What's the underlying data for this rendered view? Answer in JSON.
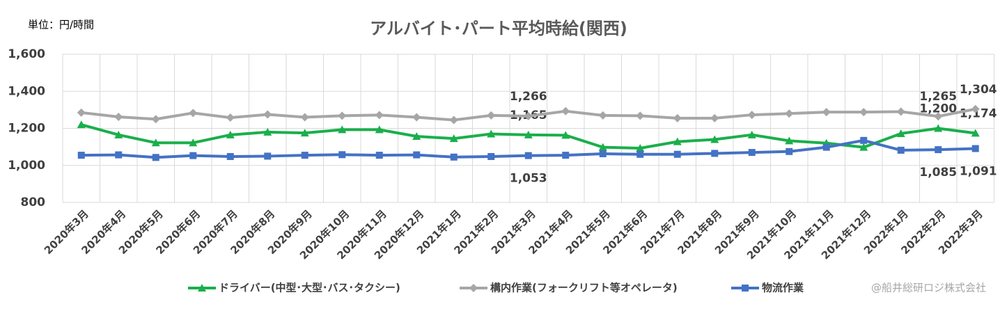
{
  "chart_data": {
    "type": "line",
    "title": "アルバイト･パート平均時給(関西)",
    "unit_label": "単位：円/時間",
    "credit": "@船井総研ロジ株式会社",
    "categories": [
      "2020年3月",
      "2020年4月",
      "2020年5月",
      "2020年6月",
      "2020年7月",
      "2020年8月",
      "2020年9月",
      "2020年10月",
      "2020年11月",
      "2020年12月",
      "2021年1月",
      "2021年2月",
      "2021年3月",
      "2021年4月",
      "2021年5月",
      "2021年6月",
      "2021年7月",
      "2021年8月",
      "2021年9月",
      "2021年10月",
      "2021年11月",
      "2021年12月",
      "2022年1月",
      "2022年2月",
      "2022年3月"
    ],
    "series": [
      {
        "name": "ドライバー(中型･大型･バス･タクシー)",
        "color": "#1aaf4b",
        "marker": "triangle",
        "values": [
          1220,
          1165,
          1122,
          1122,
          1165,
          1180,
          1175,
          1193,
          1193,
          1157,
          1145,
          1170,
          1165,
          1163,
          1098,
          1093,
          1128,
          1140,
          1165,
          1133,
          1120,
          1098,
          1172,
          1200,
          1174
        ],
        "value_labels": [
          null,
          null,
          null,
          null,
          null,
          null,
          null,
          null,
          null,
          null,
          null,
          null,
          "1,165",
          null,
          null,
          null,
          null,
          null,
          null,
          null,
          null,
          null,
          null,
          "1,200",
          "1,174"
        ]
      },
      {
        "name": "構内作業(フォークリフト等オペレータ)",
        "color": "#a6a6a6",
        "marker": "diamond",
        "values": [
          1285,
          1262,
          1250,
          1283,
          1258,
          1275,
          1260,
          1268,
          1272,
          1260,
          1245,
          1270,
          1266,
          1293,
          1270,
          1268,
          1255,
          1255,
          1273,
          1280,
          1288,
          1288,
          1290,
          1265,
          1304
        ],
        "value_labels": [
          null,
          null,
          null,
          null,
          null,
          null,
          null,
          null,
          null,
          null,
          null,
          null,
          "1,266",
          null,
          null,
          null,
          null,
          null,
          null,
          null,
          null,
          null,
          null,
          "1,265",
          "1,304"
        ]
      },
      {
        "name": "物流作業",
        "color": "#4472c4",
        "marker": "square",
        "values": [
          1055,
          1057,
          1043,
          1053,
          1048,
          1050,
          1055,
          1058,
          1055,
          1057,
          1045,
          1048,
          1053,
          1055,
          1063,
          1060,
          1060,
          1065,
          1070,
          1075,
          1098,
          1135,
          1082,
          1085,
          1091
        ],
        "value_labels": [
          null,
          null,
          null,
          null,
          null,
          null,
          null,
          null,
          null,
          null,
          null,
          null,
          "1,053",
          null,
          null,
          null,
          null,
          null,
          null,
          null,
          null,
          null,
          null,
          "1,085",
          "1,091"
        ]
      }
    ],
    "ylim": [
      800,
      1600
    ],
    "yticks": [
      800,
      {
        "value": 1000,
        "label": "1,000"
      },
      {
        "value": 1200,
        "label": "1,200"
      },
      {
        "value": 1400,
        "label": "1,400"
      },
      {
        "value": 1600,
        "label": "1,600"
      }
    ],
    "grid": true
  }
}
